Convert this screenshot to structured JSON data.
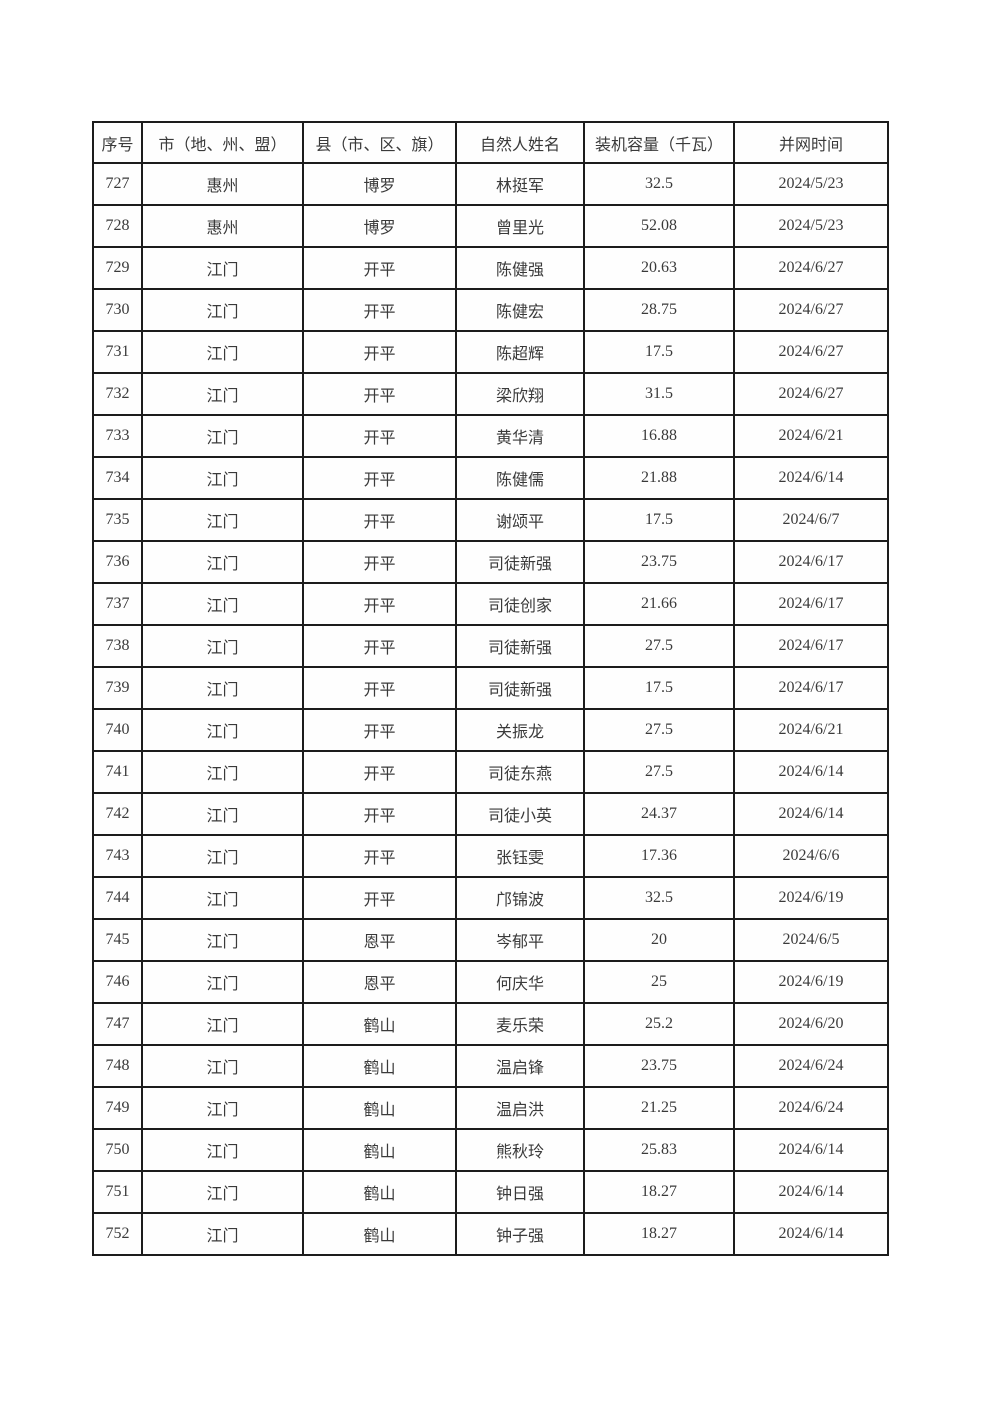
{
  "page": {
    "background_color": "#ffffff",
    "border_color": "#1c1c1c",
    "text_color": "#3a3a3a"
  },
  "table": {
    "columns": [
      "序号",
      "市（地、州、盟）",
      "县（市、区、旗）",
      "自然人姓名",
      "装机容量（千瓦）",
      "并网时间"
    ],
    "rows": [
      [
        "727",
        "惠州",
        "博罗",
        "林挺军",
        "32.5",
        "2024/5/23"
      ],
      [
        "728",
        "惠州",
        "博罗",
        "曾里光",
        "52.08",
        "2024/5/23"
      ],
      [
        "729",
        "江门",
        "开平",
        "陈健强",
        "20.63",
        "2024/6/27"
      ],
      [
        "730",
        "江门",
        "开平",
        "陈健宏",
        "28.75",
        "2024/6/27"
      ],
      [
        "731",
        "江门",
        "开平",
        "陈超辉",
        "17.5",
        "2024/6/27"
      ],
      [
        "732",
        "江门",
        "开平",
        "梁欣翔",
        "31.5",
        "2024/6/27"
      ],
      [
        "733",
        "江门",
        "开平",
        "黄华清",
        "16.88",
        "2024/6/21"
      ],
      [
        "734",
        "江门",
        "开平",
        "陈健儒",
        "21.88",
        "2024/6/14"
      ],
      [
        "735",
        "江门",
        "开平",
        "谢颂平",
        "17.5",
        "2024/6/7"
      ],
      [
        "736",
        "江门",
        "开平",
        "司徒新强",
        "23.75",
        "2024/6/17"
      ],
      [
        "737",
        "江门",
        "开平",
        "司徒创家",
        "21.66",
        "2024/6/17"
      ],
      [
        "738",
        "江门",
        "开平",
        "司徒新强",
        "27.5",
        "2024/6/17"
      ],
      [
        "739",
        "江门",
        "开平",
        "司徒新强",
        "17.5",
        "2024/6/17"
      ],
      [
        "740",
        "江门",
        "开平",
        "关振龙",
        "27.5",
        "2024/6/21"
      ],
      [
        "741",
        "江门",
        "开平",
        "司徒东燕",
        "27.5",
        "2024/6/14"
      ],
      [
        "742",
        "江门",
        "开平",
        "司徒小英",
        "24.37",
        "2024/6/14"
      ],
      [
        "743",
        "江门",
        "开平",
        "张钰雯",
        "17.36",
        "2024/6/6"
      ],
      [
        "744",
        "江门",
        "开平",
        "邝锦波",
        "32.5",
        "2024/6/19"
      ],
      [
        "745",
        "江门",
        "恩平",
        "岑郁平",
        "20",
        "2024/6/5"
      ],
      [
        "746",
        "江门",
        "恩平",
        "何庆华",
        "25",
        "2024/6/19"
      ],
      [
        "747",
        "江门",
        "鹤山",
        "麦乐荣",
        "25.2",
        "2024/6/20"
      ],
      [
        "748",
        "江门",
        "鹤山",
        "温启锋",
        "23.75",
        "2024/6/24"
      ],
      [
        "749",
        "江门",
        "鹤山",
        "温启洪",
        "21.25",
        "2024/6/24"
      ],
      [
        "750",
        "江门",
        "鹤山",
        "熊秋玲",
        "25.83",
        "2024/6/14"
      ],
      [
        "751",
        "江门",
        "鹤山",
        "钟日强",
        "18.27",
        "2024/6/14"
      ],
      [
        "752",
        "江门",
        "鹤山",
        "钟子强",
        "18.27",
        "2024/6/14"
      ]
    ]
  }
}
